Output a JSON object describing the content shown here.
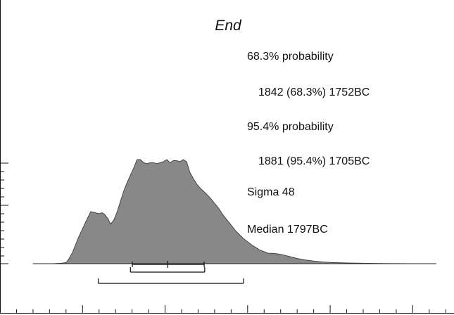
{
  "chart_data": {
    "type": "area",
    "title": "End",
    "annotations": [
      "68.3% probability",
      "1842 (68.3%) 1752BC",
      "95.4% probability",
      "1881 (95.4%) 1705BC",
      "Sigma 48",
      "Median 1797BC"
    ],
    "x_direction": "calendar years BC, decreasing left to right",
    "xlim": [
      2000,
      1450
    ],
    "fill_color": "#888888",
    "line_color": "#444444",
    "series": [
      {
        "x": [
          1950,
          1935,
          1925,
          1920,
          1917,
          1912,
          1905,
          1895,
          1890,
          1885,
          1880,
          1876,
          1873,
          1869,
          1866,
          1862,
          1858,
          1854,
          1850,
          1846,
          1842,
          1838,
          1834,
          1830,
          1826,
          1822,
          1818,
          1814,
          1810,
          1806,
          1802,
          1798,
          1794,
          1790,
          1786,
          1782,
          1778,
          1774,
          1770,
          1766,
          1762,
          1758,
          1754,
          1750,
          1745,
          1740,
          1735,
          1730,
          1725,
          1720,
          1715,
          1710,
          1705,
          1700,
          1695,
          1690,
          1685,
          1680,
          1675,
          1670,
          1665,
          1660,
          1650,
          1640,
          1630,
          1620,
          1610,
          1600,
          1580,
          1560,
          1540,
          1520,
          1500,
          1480
        ],
        "y": [
          0,
          0,
          0.005,
          0.01,
          0.04,
          0.11,
          0.25,
          0.42,
          0.5,
          0.49,
          0.48,
          0.49,
          0.47,
          0.43,
          0.38,
          0.42,
          0.5,
          0.6,
          0.7,
          0.78,
          0.85,
          0.92,
          1.0,
          1.0,
          0.97,
          0.96,
          0.97,
          0.97,
          0.96,
          0.97,
          0.98,
          1.0,
          0.97,
          0.99,
          0.99,
          0.98,
          1.0,
          0.98,
          0.88,
          0.82,
          0.77,
          0.73,
          0.7,
          0.67,
          0.63,
          0.58,
          0.53,
          0.47,
          0.42,
          0.37,
          0.32,
          0.28,
          0.24,
          0.21,
          0.18,
          0.155,
          0.13,
          0.115,
          0.1,
          0.1,
          0.095,
          0.09,
          0.07,
          0.05,
          0.035,
          0.025,
          0.017,
          0.012,
          0.007,
          0.004,
          0.002,
          0.001,
          0,
          0
        ]
      }
    ],
    "ranges": [
      {
        "label": "68.3%",
        "from": 1842,
        "to": 1752
      },
      {
        "label": "95.4%",
        "from": 1881,
        "to": 1705
      }
    ],
    "median": 1797
  }
}
